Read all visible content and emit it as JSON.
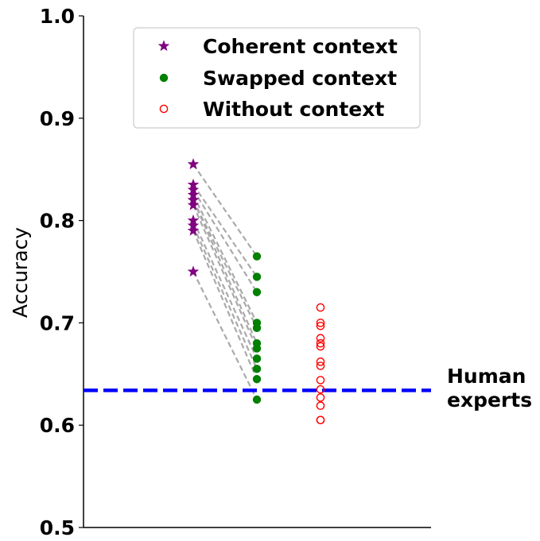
{
  "chart_data": {
    "type": "scatter",
    "title": "",
    "xlabel": "",
    "ylabel": "Accuracy",
    "ylim": [
      0.5,
      1.0
    ],
    "yticks": [
      "0.5",
      "0.6",
      "0.7",
      "0.8",
      "0.9",
      "1.0"
    ],
    "grid": false,
    "legend_position": "top",
    "series": [
      {
        "name": "Coherent context",
        "marker": "star",
        "color": "#800080",
        "x": 1,
        "values": [
          0.855,
          0.835,
          0.83,
          0.825,
          0.82,
          0.82,
          0.815,
          0.8,
          0.795,
          0.79,
          0.75
        ]
      },
      {
        "name": "Swapped context",
        "marker": "filled-circle",
        "color": "#008000",
        "x": 2,
        "values": [
          0.765,
          0.745,
          0.73,
          0.7,
          0.695,
          0.68,
          0.675,
          0.665,
          0.655,
          0.645,
          0.625
        ]
      },
      {
        "name": "Without context",
        "marker": "open-circle",
        "color": "#ff0000",
        "x": 3,
        "values": [
          0.715,
          0.7,
          0.697,
          0.685,
          0.68,
          0.677,
          0.662,
          0.658,
          0.644,
          0.635,
          0.627,
          0.619,
          0.605,
          0.605
        ]
      }
    ],
    "pairs": [
      [
        0.855,
        0.765
      ],
      [
        0.835,
        0.745
      ],
      [
        0.83,
        0.73
      ],
      [
        0.825,
        0.7
      ],
      [
        0.82,
        0.695
      ],
      [
        0.82,
        0.68
      ],
      [
        0.815,
        0.675
      ],
      [
        0.8,
        0.665
      ],
      [
        0.795,
        0.655
      ],
      [
        0.79,
        0.645
      ],
      [
        0.75,
        0.625
      ]
    ],
    "pair_line_color": "#aaaaaa",
    "reference_line": {
      "value": 0.634,
      "label_lines": [
        "Human",
        "experts"
      ],
      "color": "#0000ff"
    }
  }
}
